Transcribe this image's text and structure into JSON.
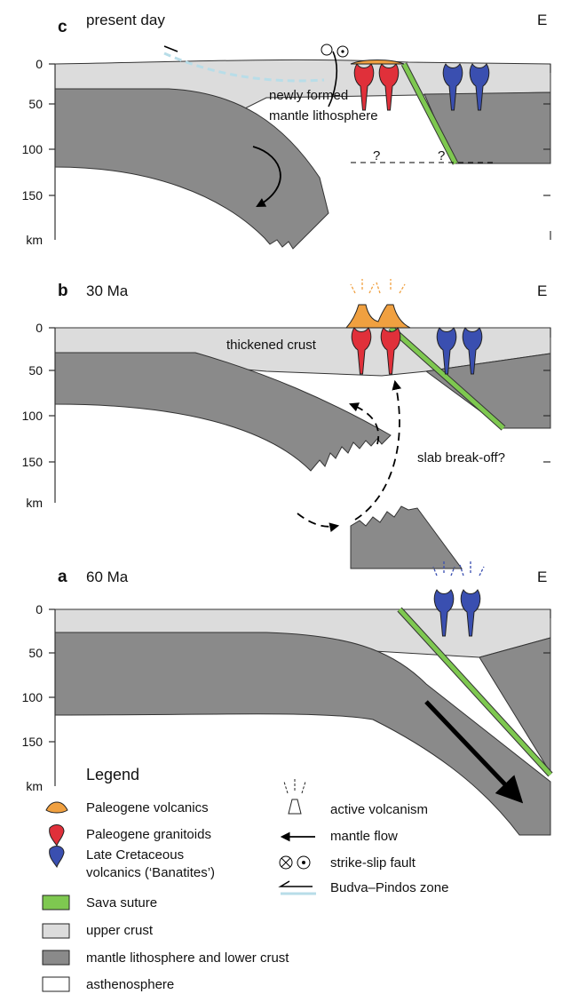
{
  "panels": [
    {
      "label": "c",
      "title": "present day",
      "east": "E",
      "depth_labels": [
        "0",
        "50",
        "100",
        "150",
        "km"
      ],
      "annotations": [
        "newly formed",
        "mantle lithosphere",
        "?",
        "?"
      ]
    },
    {
      "label": "b",
      "title": "30 Ma",
      "east": "E",
      "depth_labels": [
        "0",
        "50",
        "100",
        "150",
        "km"
      ],
      "annotations": [
        "thickened crust",
        "slab break-off?"
      ]
    },
    {
      "label": "a",
      "title": "60 Ma",
      "east": "E",
      "depth_labels": [
        "0",
        "50",
        "100",
        "150",
        "km"
      ]
    }
  ],
  "legend": {
    "title": "Legend",
    "items": [
      "Paleogene volcanics",
      "Paleogene granitoids",
      "Late Cretaceous",
      "volcanics (‘Banatites’)",
      "Sava suture",
      "upper crust",
      "mantle lithosphere and lower crust",
      "asthenosphere"
    ],
    "symbols": [
      "active volcanism",
      "mantle flow",
      "strike-slip fault",
      "Budva–Pindos zone"
    ]
  }
}
